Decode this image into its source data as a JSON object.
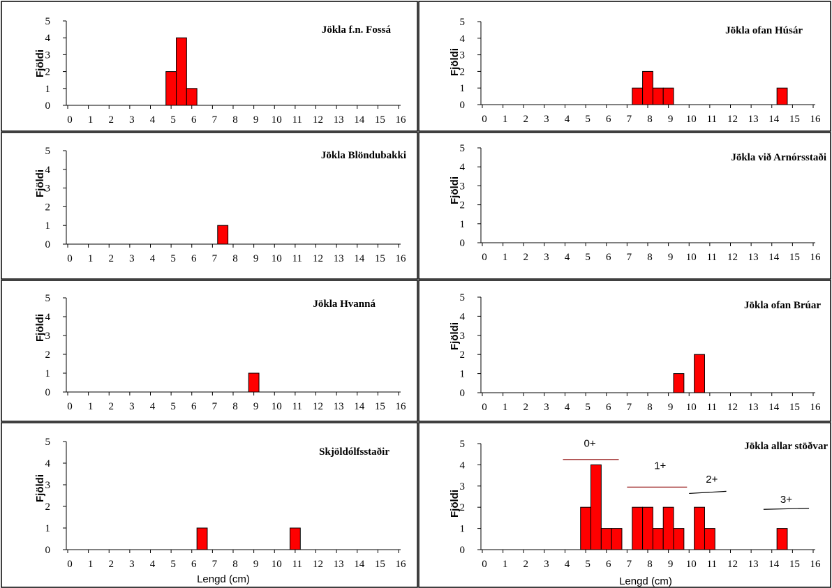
{
  "chart_data": [
    {
      "type": "bar",
      "title": "Jökla f.n. Fossá",
      "ylabel": "Fjöldi",
      "xlabel": "",
      "xlim": [
        0,
        16
      ],
      "ylim": [
        0,
        5
      ],
      "x_ticks": [
        "0",
        "1",
        "2",
        "3",
        "4",
        "5",
        "6",
        "7",
        "8",
        "9",
        "10",
        "11",
        "12",
        "13",
        "14",
        "15",
        "16"
      ],
      "y_ticks": [
        "0",
        "1",
        "2",
        "3",
        "4",
        "5"
      ],
      "bin_width": 0.5,
      "bars": [
        {
          "x": 5.0,
          "value": 2
        },
        {
          "x": 5.5,
          "value": 4
        },
        {
          "x": 6.0,
          "value": 1
        }
      ],
      "annotations": []
    },
    {
      "type": "bar",
      "title": "Jökla ofan  Húsár",
      "ylabel": "Fjöldi",
      "xlabel": "",
      "xlim": [
        0,
        16
      ],
      "ylim": [
        0,
        5
      ],
      "x_ticks": [
        "0",
        "1",
        "2",
        "3",
        "4",
        "5",
        "6",
        "7",
        "8",
        "9",
        "10",
        "11",
        "12",
        "13",
        "14",
        "15",
        "16"
      ],
      "y_ticks": [
        "0",
        "1",
        "2",
        "3",
        "4",
        "5"
      ],
      "bin_width": 0.5,
      "bars": [
        {
          "x": 7.5,
          "value": 1
        },
        {
          "x": 8.0,
          "value": 2
        },
        {
          "x": 8.5,
          "value": 1
        },
        {
          "x": 9.0,
          "value": 1
        },
        {
          "x": 14.5,
          "value": 1
        }
      ],
      "annotations": []
    },
    {
      "type": "bar",
      "title": "Jökla Blöndubakki",
      "ylabel": "Fjöldi",
      "xlabel": "",
      "xlim": [
        0,
        16
      ],
      "ylim": [
        0,
        5
      ],
      "x_ticks": [
        "0",
        "1",
        "2",
        "3",
        "4",
        "5",
        "6",
        "7",
        "8",
        "9",
        "10",
        "11",
        "12",
        "13",
        "14",
        "15",
        "16"
      ],
      "y_ticks": [
        "0",
        "1",
        "2",
        "3",
        "4",
        "5"
      ],
      "bin_width": 0.5,
      "bars": [
        {
          "x": 7.5,
          "value": 1
        }
      ],
      "annotations": []
    },
    {
      "type": "bar",
      "title": "Jökla við  Arnórsstaði",
      "ylabel": "Fjöldi",
      "xlabel": "",
      "xlim": [
        0,
        16
      ],
      "ylim": [
        0,
        5
      ],
      "x_ticks": [
        "0",
        "1",
        "2",
        "3",
        "4",
        "5",
        "6",
        "7",
        "8",
        "9",
        "10",
        "11",
        "12",
        "13",
        "14",
        "15",
        "16"
      ],
      "y_ticks": [
        "0",
        "1",
        "2",
        "3",
        "4",
        "5"
      ],
      "bin_width": 0.5,
      "bars": [],
      "annotations": []
    },
    {
      "type": "bar",
      "title": "Jökla Hvanná",
      "ylabel": "Fjöldi",
      "xlabel": "",
      "xlim": [
        0,
        16
      ],
      "ylim": [
        0,
        5
      ],
      "x_ticks": [
        "0",
        "1",
        "2",
        "3",
        "4",
        "5",
        "6",
        "7",
        "8",
        "9",
        "10",
        "11",
        "12",
        "13",
        "14",
        "15",
        "16"
      ],
      "y_ticks": [
        "0",
        "1",
        "2",
        "3",
        "4",
        "5"
      ],
      "bin_width": 0.5,
      "bars": [
        {
          "x": 9.0,
          "value": 1
        }
      ],
      "annotations": []
    },
    {
      "type": "bar",
      "title": "Jökla ofan  Brúar",
      "ylabel": "Fjöldi",
      "xlabel": "",
      "xlim": [
        0,
        16
      ],
      "ylim": [
        0,
        5
      ],
      "x_ticks": [
        "0",
        "1",
        "2",
        "3",
        "4",
        "5",
        "6",
        "7",
        "8",
        "9",
        "10",
        "11",
        "12",
        "13",
        "14",
        "15",
        "16"
      ],
      "y_ticks": [
        "0",
        "1",
        "2",
        "3",
        "4",
        "5"
      ],
      "bin_width": 0.5,
      "bars": [
        {
          "x": 9.5,
          "value": 1
        },
        {
          "x": 10.5,
          "value": 2
        }
      ],
      "annotations": []
    },
    {
      "type": "bar",
      "title": "Skjöldólfsstaðir",
      "ylabel": "Fjöldi",
      "xlabel": "Lengd (cm)",
      "xlim": [
        0,
        16
      ],
      "ylim": [
        0,
        5
      ],
      "x_ticks": [
        "0",
        "1",
        "2",
        "3",
        "4",
        "5",
        "6",
        "7",
        "8",
        "9",
        "10",
        "11",
        "12",
        "13",
        "14",
        "15",
        "16"
      ],
      "y_ticks": [
        "0",
        "1",
        "2",
        "3",
        "4",
        "5"
      ],
      "bin_width": 0.5,
      "bars": [
        {
          "x": 6.5,
          "value": 1
        },
        {
          "x": 11.0,
          "value": 1
        }
      ],
      "annotations": []
    },
    {
      "type": "bar",
      "title": "Jökla allar stöðvar",
      "ylabel": "Fjöldi",
      "xlabel": "Lengd (cm)",
      "xlim": [
        0,
        16
      ],
      "ylim": [
        0,
        5
      ],
      "x_ticks": [
        "0",
        "1",
        "2",
        "3",
        "4",
        "5",
        "6",
        "7",
        "8",
        "9",
        "10",
        "11",
        "12",
        "13",
        "14",
        "15",
        "16"
      ],
      "y_ticks": [
        "0",
        "1",
        "2",
        "3",
        "4",
        "5"
      ],
      "bin_width": 0.5,
      "bars": [
        {
          "x": 5.0,
          "value": 2
        },
        {
          "x": 5.5,
          "value": 4
        },
        {
          "x": 6.0,
          "value": 1
        },
        {
          "x": 6.5,
          "value": 1
        },
        {
          "x": 7.5,
          "value": 2
        },
        {
          "x": 8.0,
          "value": 2
        },
        {
          "x": 8.5,
          "value": 1
        },
        {
          "x": 9.0,
          "value": 2
        },
        {
          "x": 9.5,
          "value": 1
        },
        {
          "x": 10.5,
          "value": 2
        },
        {
          "x": 11.0,
          "value": 1
        },
        {
          "x": 14.5,
          "value": 1
        }
      ],
      "annotations": [
        {
          "label": "0+",
          "text_x": 5.2,
          "text_y": 4.85,
          "line": [
            [
              3.9,
              4.25
            ],
            [
              6.6,
              4.25
            ]
          ],
          "line_color": "#8b0000"
        },
        {
          "label": "1+",
          "text_x": 8.6,
          "text_y": 3.8,
          "line": [
            [
              7.0,
              2.95
            ],
            [
              9.9,
              2.95
            ]
          ],
          "line_color": "#8b0000"
        },
        {
          "label": "2+",
          "text_x": 11.1,
          "text_y": 3.15,
          "line": [
            [
              10.0,
              2.65
            ],
            [
              11.8,
              2.75
            ]
          ],
          "line_color": "#000000"
        },
        {
          "label": "3+",
          "text_x": 14.7,
          "text_y": 2.2,
          "line": [
            [
              13.6,
              1.9
            ],
            [
              15.8,
              1.95
            ]
          ],
          "line_color": "#000000"
        }
      ]
    }
  ],
  "colors": {
    "bar_fill": "#ff0000",
    "bar_stroke": "#000000",
    "axis": "#000000",
    "background": "#ffffff"
  }
}
